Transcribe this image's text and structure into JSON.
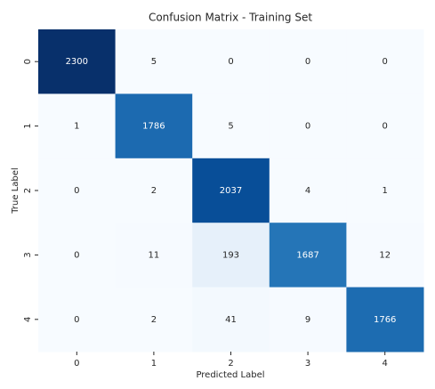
{
  "chart_data": {
    "type": "heatmap",
    "title": "Confusion Matrix - Training Set",
    "x_label": "Predicted Label",
    "y_label": "True Label",
    "x_categories": [
      "0",
      "1",
      "2",
      "3",
      "4"
    ],
    "y_categories": [
      "0",
      "1",
      "2",
      "3",
      "4"
    ],
    "values": [
      [
        2300,
        5,
        0,
        0,
        0
      ],
      [
        1,
        1786,
        5,
        0,
        0
      ],
      [
        0,
        2,
        2037,
        4,
        1
      ],
      [
        0,
        11,
        193,
        1687,
        12
      ],
      [
        0,
        2,
        41,
        9,
        1766
      ]
    ],
    "colormap": "Blues",
    "colorbar": false
  }
}
